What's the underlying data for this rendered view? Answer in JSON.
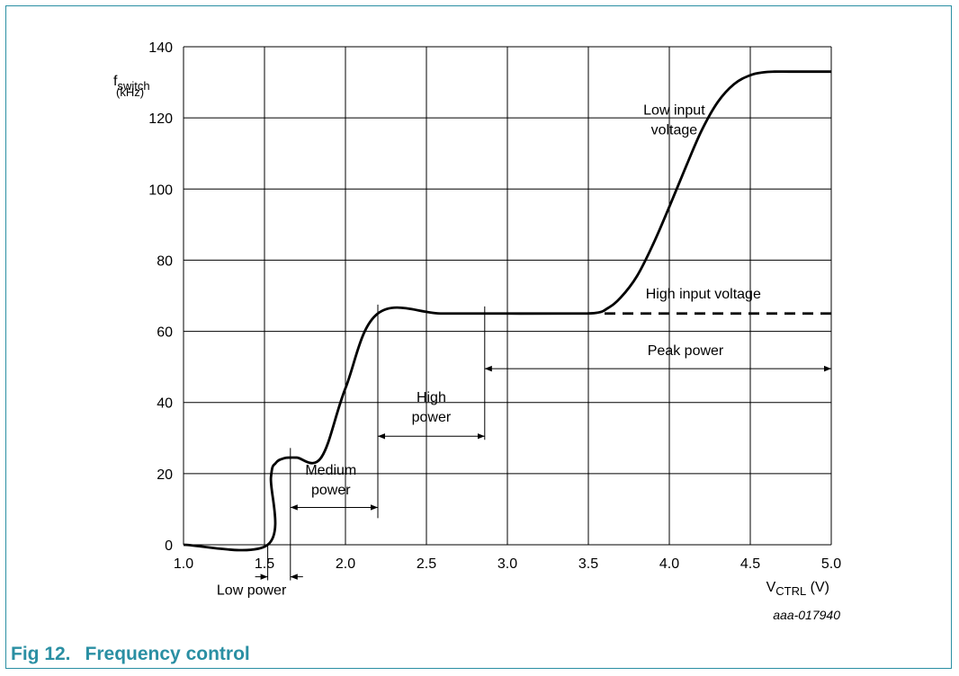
{
  "figure": {
    "number": "Fig 12.",
    "title": "Frequency control",
    "code": "aaa-017940"
  },
  "chart_data": {
    "type": "line",
    "ylabel": {
      "main": "f",
      "sub": "switch",
      "unit": "(kHz)"
    },
    "xlabel": {
      "main": "V",
      "sub": "CTRL",
      "unit": " (V)"
    },
    "xlim": [
      1.0,
      5.0
    ],
    "ylim": [
      0,
      140
    ],
    "xticks": [
      "1.0",
      "1.5",
      "2.0",
      "2.5",
      "3.0",
      "3.5",
      "4.0",
      "4.5",
      "5.0"
    ],
    "yticks": [
      "0",
      "20",
      "40",
      "60",
      "80",
      "100",
      "120",
      "140"
    ],
    "grid": true,
    "series": [
      {
        "name": "Low input voltage",
        "style": "solid",
        "x": [
          1.0,
          1.52,
          1.54,
          1.57,
          1.62,
          1.66,
          1.7,
          1.85,
          2.0,
          2.2,
          2.6,
          3.0,
          3.4,
          3.55,
          3.62,
          3.7,
          3.8,
          3.9,
          4.0,
          4.1,
          4.2,
          4.3,
          4.4,
          4.5,
          4.58,
          4.65,
          4.8,
          5.0
        ],
        "y": [
          0,
          0,
          19,
          23,
          24.3,
          24.5,
          24.5,
          24.5,
          44,
          65,
          65,
          65,
          65,
          65.2,
          66.5,
          69.5,
          75.5,
          84.5,
          95,
          106,
          116.5,
          124.5,
          129.5,
          132,
          132.8,
          133,
          133,
          133
        ]
      },
      {
        "name": "High input voltage",
        "style": "dashed",
        "x": [
          3.6,
          5.0
        ],
        "y": [
          65,
          65
        ]
      }
    ],
    "annotations": [
      {
        "id": "low-input",
        "lines": [
          "Low input",
          "voltage"
        ],
        "x": 4.03,
        "y": 115.3
      },
      {
        "id": "high-input",
        "lines": [
          "High input voltage"
        ],
        "x": 4.21,
        "y": 69.3
      },
      {
        "id": "peak-power",
        "lines": [
          "Peak power"
        ],
        "x": 4.1,
        "y": 53.3
      },
      {
        "id": "high-power",
        "lines": [
          "High",
          "power"
        ],
        "x": 2.53,
        "y": 34.6
      },
      {
        "id": "medium-power",
        "lines": [
          "Medium",
          "power"
        ],
        "x": 1.91,
        "y": 14.2
      },
      {
        "id": "low-power",
        "lines": [
          "Low power"
        ],
        "x": 1.42,
        "y": -14
      }
    ],
    "ranges": [
      {
        "id": "low-power",
        "x1": 1.52,
        "x2": 1.66,
        "y": -9,
        "style": "inward"
      },
      {
        "id": "medium-power",
        "x1": 1.66,
        "x2": 2.2,
        "y": 10.5,
        "style": "double"
      },
      {
        "id": "high-power",
        "x1": 2.2,
        "x2": 2.86,
        "y": 30.5,
        "style": "double"
      },
      {
        "id": "peak-power",
        "x1": 2.86,
        "x2": 5.0,
        "y": 49.5,
        "style": "double"
      }
    ],
    "markers": [
      {
        "x": 1.52,
        "y1": -10,
        "y2": 0
      },
      {
        "x": 1.66,
        "y1": -10,
        "y2": 27.2
      },
      {
        "x": 2.2,
        "y1": 7.5,
        "y2": 67.5
      },
      {
        "x": 2.86,
        "y1": 29.5,
        "y2": 67
      }
    ]
  }
}
